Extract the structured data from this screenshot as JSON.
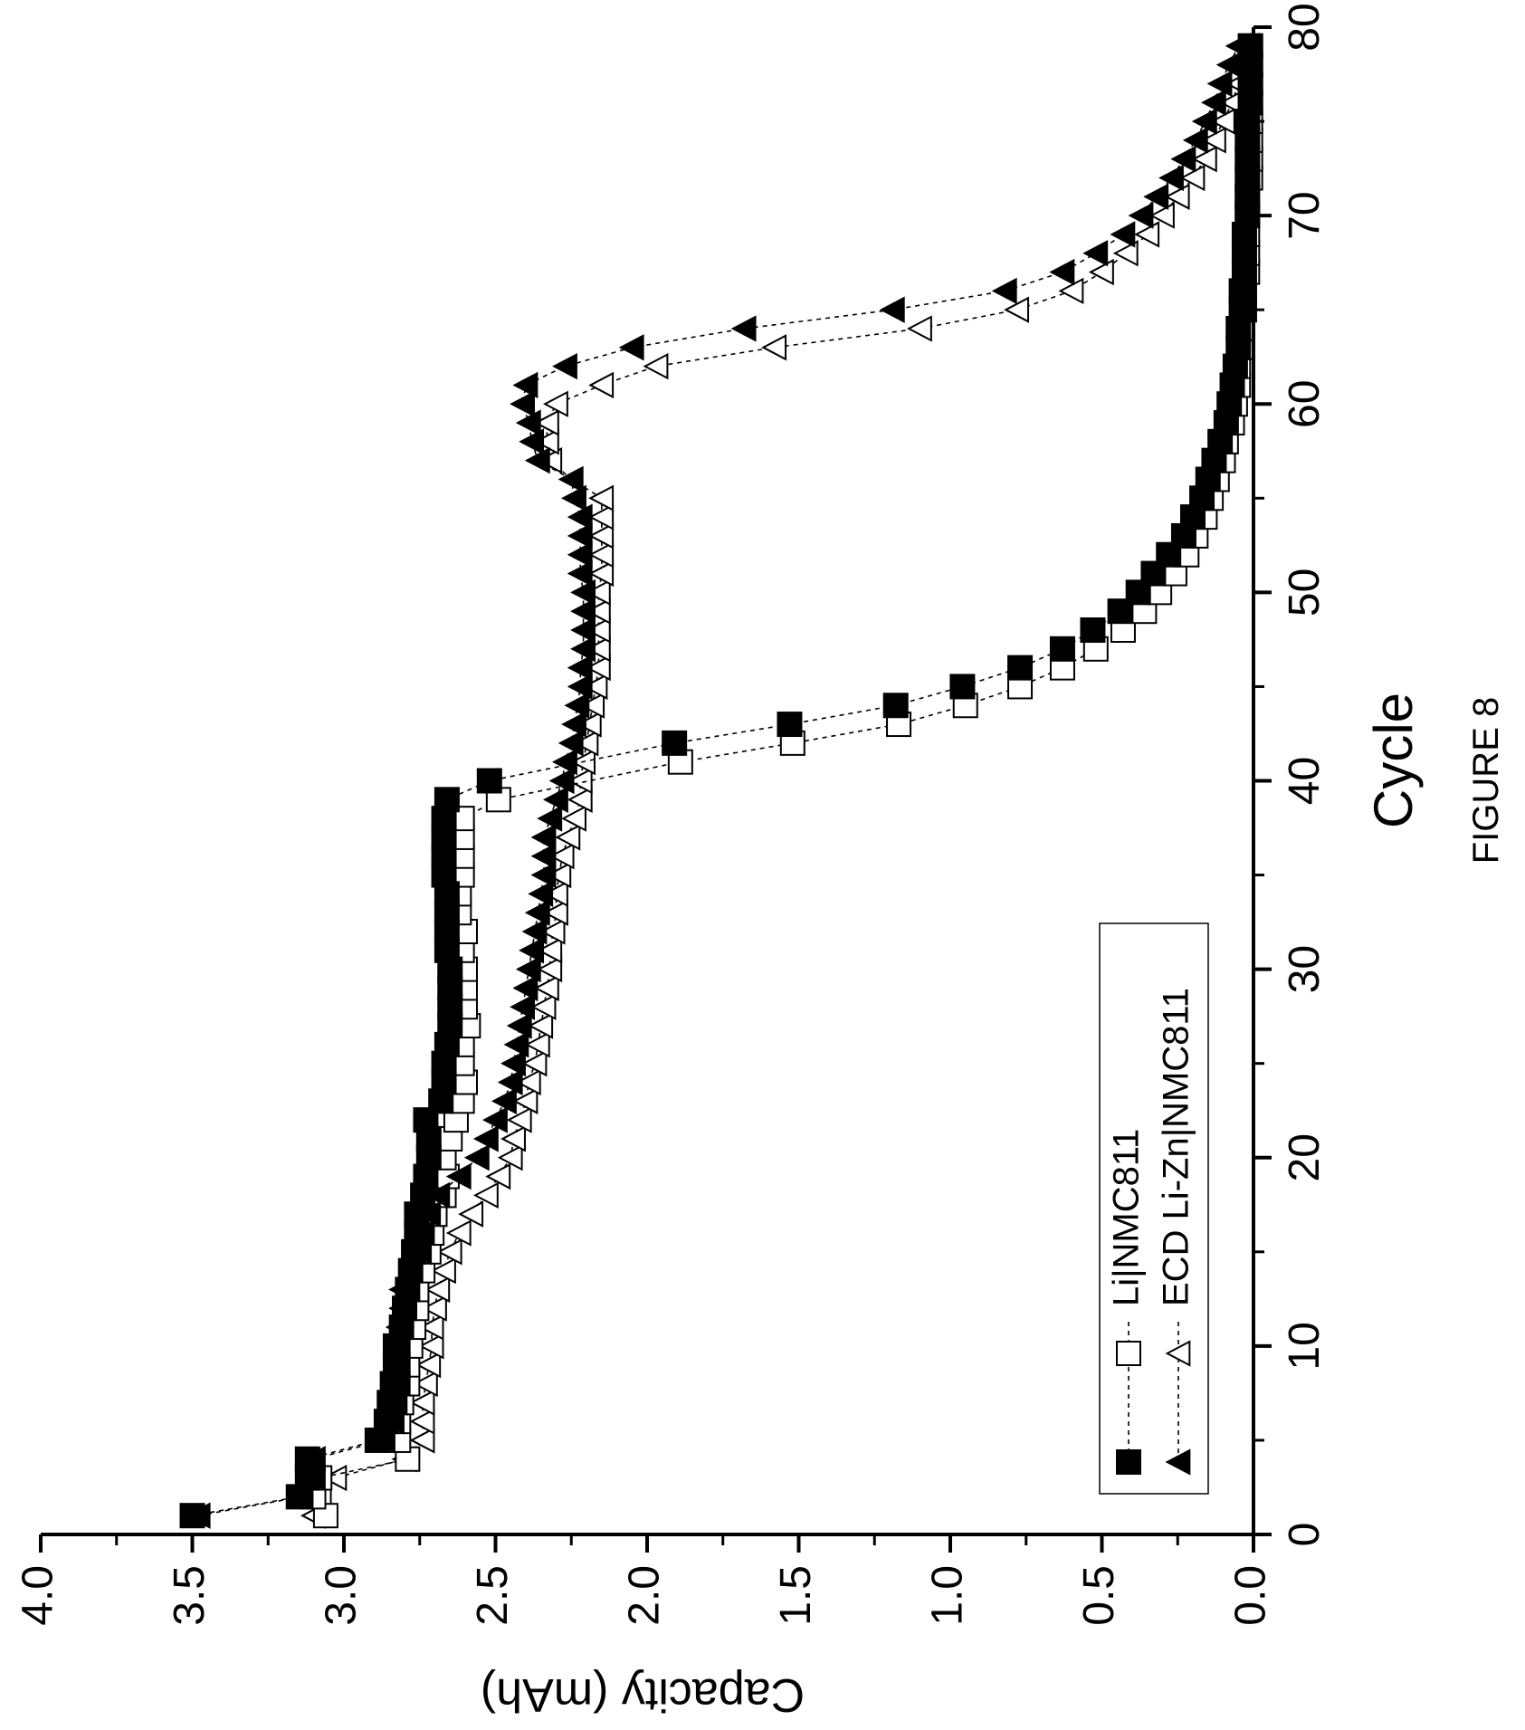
{
  "figure_caption": "FIGURE 8",
  "chart_data": {
    "type": "scatter",
    "title": "",
    "xlabel": "Cycle",
    "ylabel": "Capacity (mAh)",
    "xlim": [
      0,
      80
    ],
    "ylim": [
      0,
      4.0
    ],
    "x_tick_labels": [
      "0",
      "10",
      "20",
      "30",
      "40",
      "50",
      "60",
      "70",
      "80"
    ],
    "x_ticks": [
      0,
      10,
      20,
      30,
      40,
      50,
      60,
      70,
      80
    ],
    "y_tick_labels": [
      "0.0",
      "0.5",
      "1.0",
      "1.5",
      "2.0",
      "2.5",
      "3.0",
      "3.5",
      "4.0"
    ],
    "y_ticks": [
      0,
      0.5,
      1.0,
      1.5,
      2.0,
      2.5,
      3.0,
      3.5,
      4.0
    ],
    "grid": false,
    "legend_position": "top-left",
    "orientation": "rotated 90 degrees counter-clockwise",
    "series": [
      {
        "name": "Li|NMC811",
        "marker": "square",
        "paired_markers": [
          "filled",
          "hollow"
        ],
        "filled": {
          "x": [
            1,
            2,
            3,
            4,
            5,
            6,
            7,
            8,
            9,
            10,
            11,
            12,
            13,
            14,
            15,
            16,
            17,
            18,
            19,
            20,
            21,
            22,
            23,
            24,
            25,
            26,
            27,
            28,
            29,
            30,
            31,
            32,
            33,
            34,
            35,
            36,
            37,
            38,
            39,
            40,
            42,
            43,
            44,
            45,
            46,
            47,
            48,
            49,
            50,
            51,
            52,
            53,
            54,
            55,
            56,
            57,
            58,
            59,
            60,
            61,
            62,
            63,
            64,
            65,
            66,
            67,
            68,
            69,
            70,
            71,
            72,
            73,
            74,
            75,
            76,
            77,
            78,
            79
          ],
          "y": [
            3.5,
            3.15,
            3.12,
            3.12,
            2.89,
            2.86,
            2.85,
            2.84,
            2.83,
            2.83,
            2.81,
            2.8,
            2.79,
            2.78,
            2.77,
            2.76,
            2.76,
            2.74,
            2.73,
            2.72,
            2.72,
            2.73,
            2.68,
            2.67,
            2.67,
            2.66,
            2.65,
            2.65,
            2.65,
            2.65,
            2.66,
            2.66,
            2.66,
            2.66,
            2.67,
            2.67,
            2.67,
            2.67,
            2.66,
            2.52,
            1.91,
            1.53,
            1.18,
            0.96,
            0.77,
            0.63,
            0.53,
            0.44,
            0.38,
            0.33,
            0.28,
            0.23,
            0.2,
            0.17,
            0.15,
            0.13,
            0.11,
            0.09,
            0.08,
            0.07,
            0.06,
            0.05,
            0.05,
            0.04,
            0.04,
            0.03,
            0.03,
            0.03,
            0.02,
            0.02,
            0.02,
            0.02,
            0.02,
            0.02,
            0.01,
            0.01,
            0.01,
            0.01
          ]
        },
        "hollow": {
          "x": [
            1,
            2,
            3,
            4,
            5,
            6,
            7,
            8,
            9,
            10,
            11,
            12,
            13,
            14,
            15,
            16,
            17,
            18,
            19,
            20,
            21,
            22,
            23,
            24,
            25,
            26,
            27,
            28,
            29,
            30,
            31,
            32,
            33,
            34,
            35,
            36,
            37,
            38,
            39,
            41,
            42,
            43,
            44,
            45,
            46,
            47,
            48,
            49,
            50,
            51,
            52,
            53,
            54,
            55,
            56,
            57,
            58,
            59,
            60,
            61,
            62,
            63,
            64,
            65,
            66,
            67,
            68,
            69,
            70,
            71,
            72,
            73,
            74,
            75,
            76,
            77,
            78,
            79
          ],
          "y": [
            3.06,
            3.1,
            3.08,
            2.79,
            2.82,
            2.82,
            2.81,
            2.79,
            2.79,
            2.78,
            2.77,
            2.76,
            2.76,
            2.74,
            2.72,
            2.71,
            2.7,
            2.67,
            2.66,
            2.67,
            2.65,
            2.63,
            2.61,
            2.6,
            2.61,
            2.61,
            2.59,
            2.6,
            2.6,
            2.6,
            2.61,
            2.6,
            2.62,
            2.62,
            2.61,
            2.61,
            2.61,
            2.61,
            2.49,
            1.89,
            1.52,
            1.17,
            0.95,
            0.77,
            0.63,
            0.52,
            0.43,
            0.36,
            0.31,
            0.26,
            0.22,
            0.19,
            0.16,
            0.14,
            0.12,
            0.1,
            0.09,
            0.07,
            0.06,
            0.05,
            0.05,
            0.04,
            0.04,
            0.03,
            0.03,
            0.02,
            0.02,
            0.02,
            0.02,
            0.02,
            0.01,
            0.01,
            0.01,
            0.01,
            0.01,
            0.01,
            0.01,
            0.01
          ]
        }
      },
      {
        "name": "ECD Li-Zn|NMC811",
        "marker": "triangle",
        "paired_markers": [
          "filled",
          "hollow"
        ],
        "filled": {
          "x": [
            1,
            2,
            3,
            4,
            5,
            6,
            7,
            8,
            9,
            10,
            11,
            12,
            13,
            14,
            15,
            16,
            17,
            18,
            19,
            20,
            21,
            22,
            23,
            24,
            25,
            26,
            27,
            28,
            29,
            30,
            31,
            32,
            33,
            34,
            35,
            36,
            37,
            38,
            39,
            40,
            41,
            42,
            43,
            44,
            45,
            46,
            47,
            48,
            49,
            50,
            51,
            52,
            53,
            54,
            55,
            56,
            57,
            58,
            59,
            60,
            61,
            62,
            63,
            64,
            65,
            66,
            67,
            68,
            69,
            70,
            71,
            72,
            73,
            74,
            75,
            76,
            77,
            78,
            79
          ],
          "y": [
            3.48,
            3.14,
            3.1,
            3.1,
            2.87,
            2.84,
            2.83,
            2.82,
            2.82,
            2.82,
            2.82,
            2.81,
            2.81,
            2.78,
            2.75,
            2.74,
            2.72,
            2.69,
            2.62,
            2.56,
            2.53,
            2.5,
            2.47,
            2.45,
            2.44,
            2.43,
            2.42,
            2.41,
            2.4,
            2.39,
            2.38,
            2.37,
            2.36,
            2.35,
            2.34,
            2.34,
            2.34,
            2.32,
            2.3,
            2.28,
            2.27,
            2.25,
            2.24,
            2.23,
            2.22,
            2.22,
            2.21,
            2.21,
            2.21,
            2.21,
            2.22,
            2.22,
            2.22,
            2.22,
            2.24,
            2.25,
            2.36,
            2.38,
            2.39,
            2.41,
            2.4,
            2.27,
            2.05,
            1.68,
            1.19,
            0.82,
            0.63,
            0.52,
            0.43,
            0.37,
            0.32,
            0.27,
            0.23,
            0.19,
            0.16,
            0.13,
            0.11,
            0.08,
            0.05
          ]
        },
        "hollow": {
          "x": [
            1,
            2,
            3,
            4,
            5,
            6,
            7,
            8,
            9,
            10,
            11,
            12,
            13,
            14,
            15,
            16,
            17,
            18,
            19,
            20,
            21,
            22,
            23,
            24,
            25,
            26,
            27,
            28,
            29,
            30,
            31,
            32,
            33,
            34,
            35,
            36,
            37,
            38,
            39,
            40,
            41,
            42,
            43,
            44,
            45,
            46,
            47,
            48,
            49,
            50,
            51,
            52,
            53,
            54,
            55,
            56,
            57,
            58,
            59,
            60,
            61,
            62,
            63,
            64,
            65,
            66,
            67,
            68,
            69,
            70,
            71,
            72,
            73,
            74,
            75,
            76,
            77,
            78,
            79
          ],
          "y": [
            3.1,
            3.08,
            3.03,
            2.8,
            2.74,
            2.74,
            2.74,
            2.73,
            2.72,
            2.71,
            2.71,
            2.7,
            2.69,
            2.67,
            2.65,
            2.62,
            2.58,
            2.53,
            2.49,
            2.45,
            2.44,
            2.42,
            2.4,
            2.39,
            2.37,
            2.36,
            2.35,
            2.34,
            2.33,
            2.32,
            2.32,
            2.31,
            2.3,
            2.3,
            2.29,
            2.28,
            2.26,
            2.24,
            2.22,
            2.22,
            2.21,
            2.2,
            2.19,
            2.18,
            2.17,
            2.16,
            2.16,
            2.16,
            2.16,
            2.16,
            2.15,
            2.15,
            2.15,
            2.15,
            2.15,
            2.25,
            2.32,
            2.33,
            2.33,
            2.3,
            2.15,
            1.97,
            1.58,
            1.1,
            0.78,
            0.6,
            0.5,
            0.42,
            0.35,
            0.3,
            0.25,
            0.2,
            0.16,
            0.13,
            0.1,
            0.07,
            0.05,
            0.03,
            0.02
          ]
        }
      }
    ]
  }
}
